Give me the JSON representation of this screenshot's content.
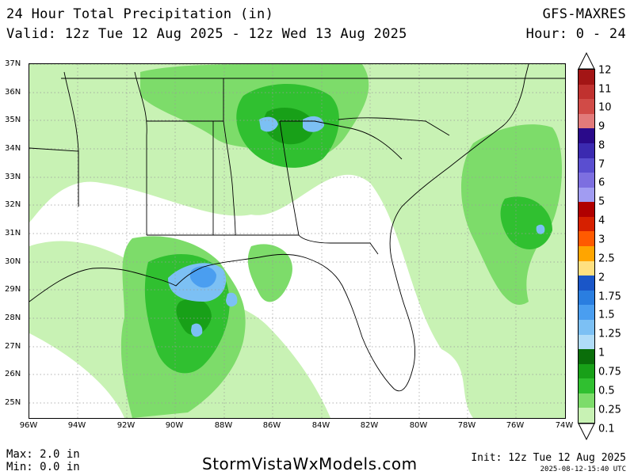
{
  "header": {
    "title": "24 Hour Total Precipitation (in)",
    "valid": "Valid: 12z Tue 12 Aug 2025 - 12z Wed 13 Aug 2025",
    "model": "GFS-MAXRES",
    "hour": "Hour: 0 - 24"
  },
  "axes": {
    "lat_labels": [
      "37N",
      "36N",
      "35N",
      "34N",
      "33N",
      "32N",
      "31N",
      "30N",
      "29N",
      "28N",
      "27N",
      "26N",
      "25N"
    ],
    "lon_labels": [
      "96W",
      "94W",
      "92W",
      "90W",
      "88W",
      "86W",
      "84W",
      "82W",
      "80W",
      "78W",
      "76W",
      "74W"
    ]
  },
  "colorbar": {
    "labels": [
      "12",
      "11",
      "10",
      "9",
      "8",
      "7",
      "6",
      "5",
      "4",
      "3",
      "2.5",
      "2",
      "1.75",
      "1.5",
      "1.25",
      "1",
      "0.75",
      "0.5",
      "0.25",
      "0.1"
    ],
    "colors": [
      "#a31515",
      "#c0312f",
      "#d14b47",
      "#e27a7a",
      "#2a0a8a",
      "#3b2ab0",
      "#5a4ed0",
      "#7d6fe0",
      "#a19cf2",
      "#b00000",
      "#d62000",
      "#ff5a00",
      "#ffa500",
      "#ffe080",
      "#1a56c8",
      "#2a7ee0",
      "#4a9ef0",
      "#7cc0f4",
      "#b0dcf8",
      "#0a6e0a",
      "#18a018",
      "#30c030",
      "#7ddc6a",
      "#c8f2b4"
    ]
  },
  "footer": {
    "max": "Max: 2.0 in",
    "min": "Min: 0.0 in",
    "brand": "StormVistaWxModels.com",
    "init": "Init: 12z Tue 12 Aug 2025",
    "timestamp": "2025-08-12-15:40 UTC"
  }
}
